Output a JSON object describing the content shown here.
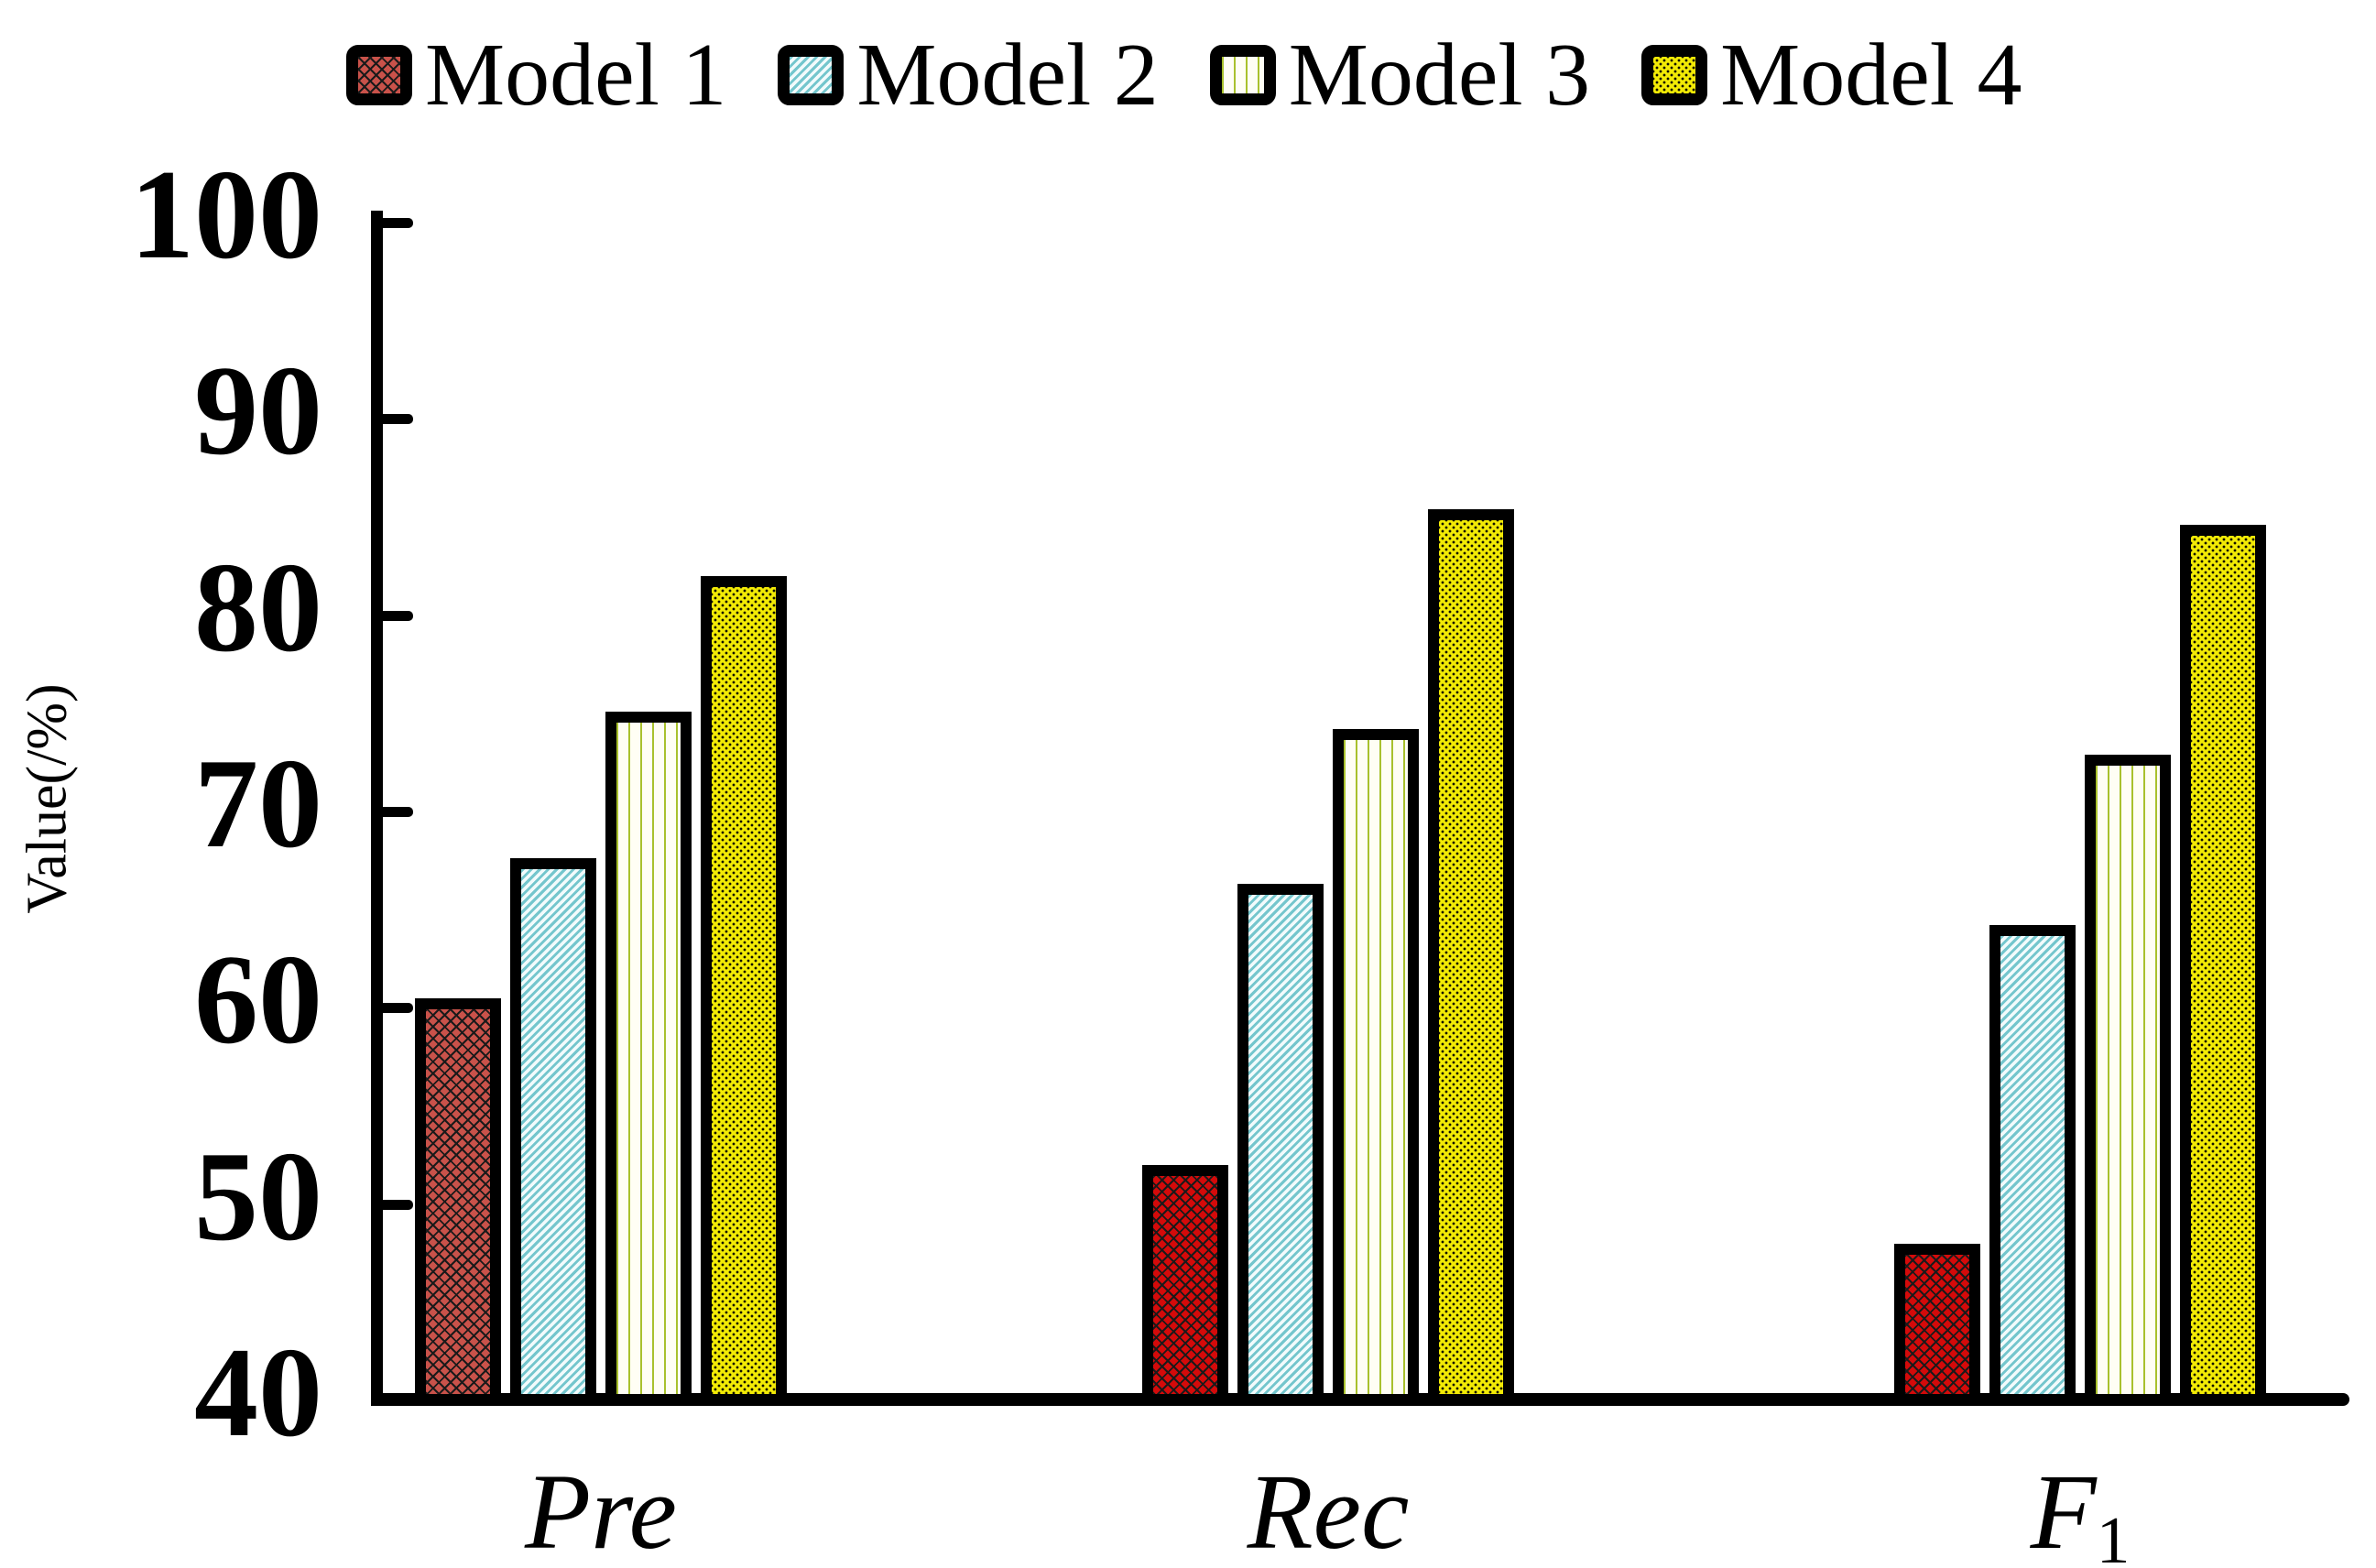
{
  "figure": {
    "background": "#ffffff",
    "axis_color": "#000000",
    "text_color": "#000000"
  },
  "chart_data": {
    "type": "bar",
    "title": "",
    "xlabel": "",
    "ylabel": "Value(/%)",
    "ylim": [
      40,
      100
    ],
    "yticks": [
      40,
      50,
      60,
      70,
      80,
      90,
      100
    ],
    "grid": false,
    "legend_position": "top",
    "categories": [
      {
        "text": "Pre",
        "sub": ""
      },
      {
        "text": "Rec",
        "sub": ""
      },
      {
        "text": "F",
        "sub": "1"
      }
    ],
    "series": [
      {
        "name": "Model 1",
        "values": [
          60.5,
          52.0,
          48.0
        ],
        "fills": [
          "#c9524a",
          "#d40a0a",
          "#d40a0a"
        ],
        "pattern": "crosshatch",
        "pattern_color": "#1a1a1a"
      },
      {
        "name": "Model 2",
        "values": [
          67.6,
          66.3,
          64.2
        ],
        "fills": [
          "#f2fbfc",
          "#f2fbfc",
          "#f2fbfc"
        ],
        "pattern": "diagonal-stripes",
        "pattern_color": "#74c6cd"
      },
      {
        "name": "Model 3",
        "values": [
          75.1,
          74.2,
          72.9
        ],
        "fills": [
          "#fffef4",
          "#fffef4",
          "#fffef4"
        ],
        "pattern": "vertical-lines",
        "pattern_color": "#a9c12d"
      },
      {
        "name": "Model 4",
        "values": [
          82.0,
          85.4,
          84.6
        ],
        "fills": [
          "#f2ea05",
          "#f2ea05",
          "#f2ea05"
        ],
        "pattern": "dots",
        "pattern_color": "#111100"
      }
    ]
  }
}
